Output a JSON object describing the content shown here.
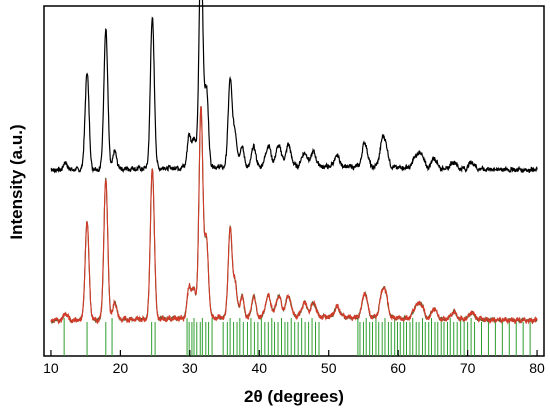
{
  "chart_data": {
    "type": "line",
    "xlabel": "2θ (degrees)",
    "ylabel": "Intensity (a.u.)",
    "xlim": [
      9,
      81
    ],
    "ylim": [
      0,
      100
    ],
    "x_ticks": [
      "10",
      "20",
      "30",
      "40",
      "50",
      "60",
      "70",
      "80"
    ],
    "y_ticks_shown": false,
    "grid": false,
    "legend": "none",
    "colors": {
      "pattern_top": "#000000",
      "observed_bottom": "#d23a2a",
      "calculated_bottom": "#555d2a",
      "reference_lines": "#2e9e2e"
    },
    "series": [
      {
        "baseline": 53,
        "peaks": [
          [
            12.1,
            2
          ],
          [
            15.2,
            28
          ],
          [
            17.9,
            40
          ],
          [
            19.2,
            5
          ],
          [
            24.6,
            43
          ],
          [
            29.9,
            9
          ],
          [
            30.6,
            8
          ],
          [
            31.6,
            62
          ],
          [
            32.4,
            22
          ],
          [
            35.8,
            25
          ],
          [
            36.5,
            10
          ],
          [
            37.5,
            6
          ],
          [
            39.2,
            6
          ],
          [
            41.3,
            6
          ],
          [
            42.8,
            6
          ],
          [
            44.2,
            6
          ],
          [
            46.5,
            4
          ],
          [
            47.8,
            4
          ],
          [
            51.2,
            3
          ],
          [
            55.2,
            7
          ],
          [
            57.7,
            6
          ],
          [
            58.2,
            5
          ],
          [
            62.5,
            3
          ],
          [
            63.3,
            4
          ],
          [
            65.2,
            3
          ],
          [
            68.0,
            2
          ],
          [
            70.6,
            2
          ]
        ]
      },
      {
        "baseline": 10,
        "peaks": [
          [
            12.1,
            2
          ],
          [
            15.2,
            28
          ],
          [
            17.9,
            40
          ],
          [
            19.2,
            5
          ],
          [
            24.6,
            43
          ],
          [
            29.9,
            9
          ],
          [
            30.6,
            8
          ],
          [
            31.6,
            60
          ],
          [
            32.4,
            22
          ],
          [
            35.8,
            25
          ],
          [
            36.5,
            10
          ],
          [
            37.5,
            6
          ],
          [
            39.2,
            6
          ],
          [
            41.3,
            6
          ],
          [
            42.8,
            6
          ],
          [
            44.2,
            6
          ],
          [
            46.5,
            4
          ],
          [
            47.8,
            4
          ],
          [
            51.2,
            3
          ],
          [
            55.2,
            7
          ],
          [
            57.7,
            6
          ],
          [
            58.2,
            5
          ],
          [
            62.5,
            3
          ],
          [
            63.3,
            4
          ],
          [
            65.2,
            3
          ],
          [
            68.0,
            2
          ],
          [
            70.6,
            2
          ]
        ]
      }
    ],
    "reference_positions": [
      11.9,
      15.2,
      17.9,
      18.8,
      24.5,
      25.0,
      29.6,
      29.9,
      30.3,
      30.6,
      31.0,
      31.5,
      31.8,
      32.3,
      32.7,
      33.2,
      34.8,
      35.4,
      35.8,
      36.3,
      36.8,
      37.2,
      37.7,
      38.3,
      38.8,
      39.3,
      39.8,
      40.3,
      40.8,
      41.3,
      41.8,
      42.2,
      42.7,
      43.2,
      43.7,
      44.1,
      44.6,
      45.1,
      45.6,
      46.1,
      46.6,
      47.1,
      47.6,
      48.1,
      48.6,
      54.2,
      54.5,
      55.0,
      55.4,
      55.9,
      56.3,
      56.8,
      57.2,
      57.7,
      58.1,
      58.6,
      59.0,
      59.5,
      59.9,
      60.3,
      60.8,
      61.2,
      61.7,
      62.1,
      62.6,
      63.0,
      63.5,
      63.9,
      64.4,
      64.8,
      65.3,
      65.7,
      66.2,
      66.6,
      67.1,
      67.5,
      68.0,
      68.5,
      69.0,
      69.5,
      70.0,
      70.5,
      71.0,
      72.0,
      73.0,
      74.0,
      75.0,
      76.0,
      77.0,
      78.0,
      79.0
    ]
  }
}
